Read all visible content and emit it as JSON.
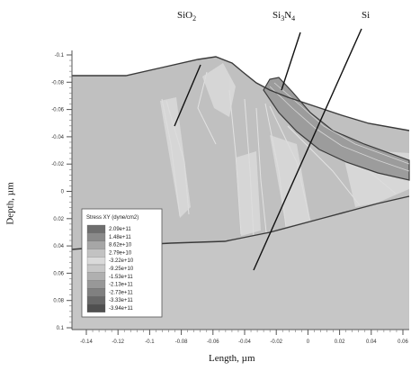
{
  "labels": {
    "sio2": {
      "main": "SiO",
      "sub": "2"
    },
    "si3n4": {
      "a": "Si",
      "b": "3",
      "c": "N",
      "d": "4"
    },
    "si": "Si"
  },
  "axes": {
    "xlabel": "Length, µm",
    "ylabel": "Depth, µm",
    "x_ticks": [
      "-0.14",
      "-0.12",
      "-0.1",
      "-0.08",
      "-0.06",
      "-0.04",
      "-0.02",
      "0",
      "0.02",
      "0.04",
      "0.06"
    ],
    "y_ticks": [
      "-0.1",
      "-0.08",
      "-0.06",
      "-0.04",
      "-0.02",
      "0",
      "0.02",
      "0.04",
      "0.06",
      "0.08",
      "0.1"
    ]
  },
  "legend": {
    "title": "Stress XY (dyne/cm2)",
    "values": [
      "2.09e+11",
      "1.48e+11",
      "8.62e+10",
      "2.79e+10",
      "-3.22e+10",
      "-9.25e+10",
      "-1.53e+11",
      "-2.13e+11",
      "-2.73e+11",
      "-3.33e+11",
      "-3.94e+11"
    ]
  },
  "colors": {
    "background_silicon": "#c8c8c8",
    "outline": "#3a3a3a",
    "nitride_fill": "#9c9c9c"
  }
}
